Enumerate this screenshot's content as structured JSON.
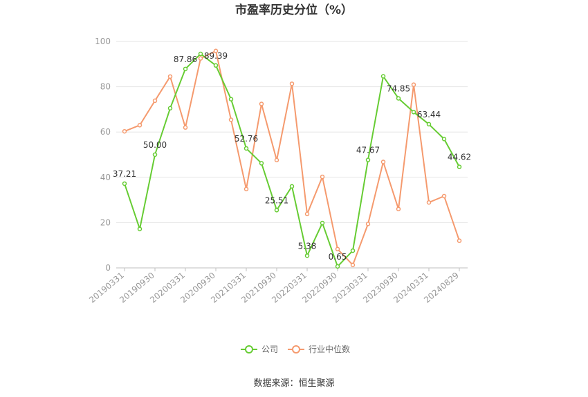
{
  "chart_data": {
    "type": "line",
    "title": "市盈率历史分位（%）",
    "ylim": [
      0,
      100
    ],
    "yticks": [
      0,
      20,
      40,
      60,
      80,
      100
    ],
    "x_tick_labels": [
      "20190331",
      "20190930",
      "20200331",
      "20200930",
      "20210331",
      "20210930",
      "20220331",
      "20220930",
      "20230331",
      "20230930",
      "20240331",
      "20240829"
    ],
    "x": [
      "20190331",
      "20190630",
      "20190930",
      "20191231",
      "20200331",
      "20200630",
      "20200930",
      "20201231",
      "20210331",
      "20210630",
      "20210930",
      "20211231",
      "20220331",
      "20220630",
      "20220930",
      "20221231",
      "20230331",
      "20230630",
      "20230930",
      "20231231",
      "20240331",
      "20240630",
      "20240829"
    ],
    "series": [
      {
        "name": "公司",
        "color": "#66cc33",
        "values": [
          37.21,
          17.2,
          50.0,
          70.5,
          87.86,
          94.5,
          89.39,
          74.5,
          52.76,
          46.2,
          25.51,
          36.0,
          5.38,
          19.8,
          0.65,
          7.6,
          47.67,
          84.6,
          74.85,
          68.8,
          63.44,
          56.9,
          44.62
        ],
        "labels": [
          "37.21",
          "",
          "50.00",
          "",
          "87.86",
          "",
          "89.39",
          "",
          "52.76",
          "",
          "25.51",
          "",
          "5.38",
          "",
          "0.65",
          "",
          "47.67",
          "",
          "74.85",
          "",
          "63.44",
          "",
          "44.62"
        ]
      },
      {
        "name": "行业中位数",
        "color": "#f59a6e",
        "values": [
          60.3,
          63.0,
          73.8,
          84.5,
          62.0,
          92.5,
          95.8,
          65.4,
          34.8,
          72.4,
          47.6,
          81.3,
          23.8,
          40.2,
          8.3,
          1.3,
          19.4,
          46.8,
          26.0,
          80.9,
          28.9,
          31.7,
          12.0
        ]
      }
    ],
    "legend_position": "bottom",
    "grid": true
  },
  "source_text": "数据来源：恒生聚源"
}
